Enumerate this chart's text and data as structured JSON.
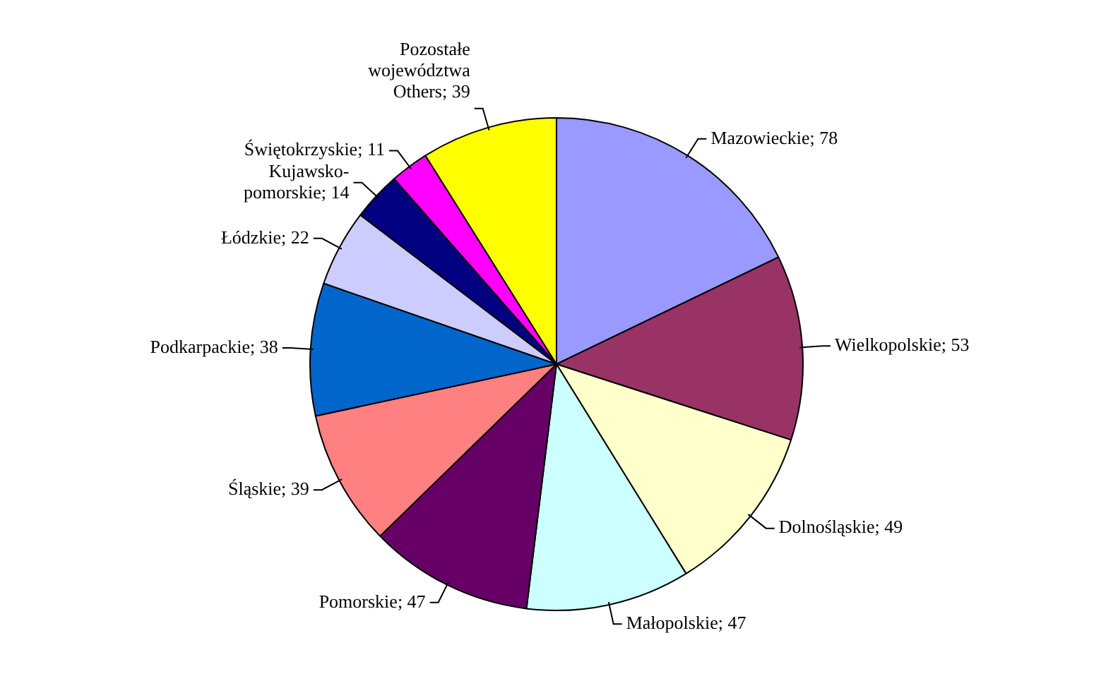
{
  "chart_data": {
    "type": "pie",
    "categories": [
      "Mazowieckie",
      "Wielkopolskie",
      "Dolnośląskie",
      "Małopolskie",
      "Pomorskie",
      "Śląskie",
      "Podkarpackie",
      "Łódzkie",
      "Kujawsko-pomorskie",
      "Świętokrzyskie",
      "Pozostałe województwa Others"
    ],
    "values": [
      78,
      53,
      49,
      47,
      47,
      39,
      38,
      22,
      14,
      11,
      39
    ],
    "colors": [
      "#9999ff",
      "#993366",
      "#ffffcc",
      "#ccffff",
      "#660066",
      "#ff8080",
      "#0066cc",
      "#ccccff",
      "#000080",
      "#ff00ff",
      "#ffff00"
    ],
    "value_labels": [
      "; 78",
      "; 53",
      "; 49",
      "; 47",
      "; 47",
      "; 39",
      "; 38",
      "; 22",
      "; 14",
      "; 11",
      "; 39"
    ],
    "legend": false
  }
}
